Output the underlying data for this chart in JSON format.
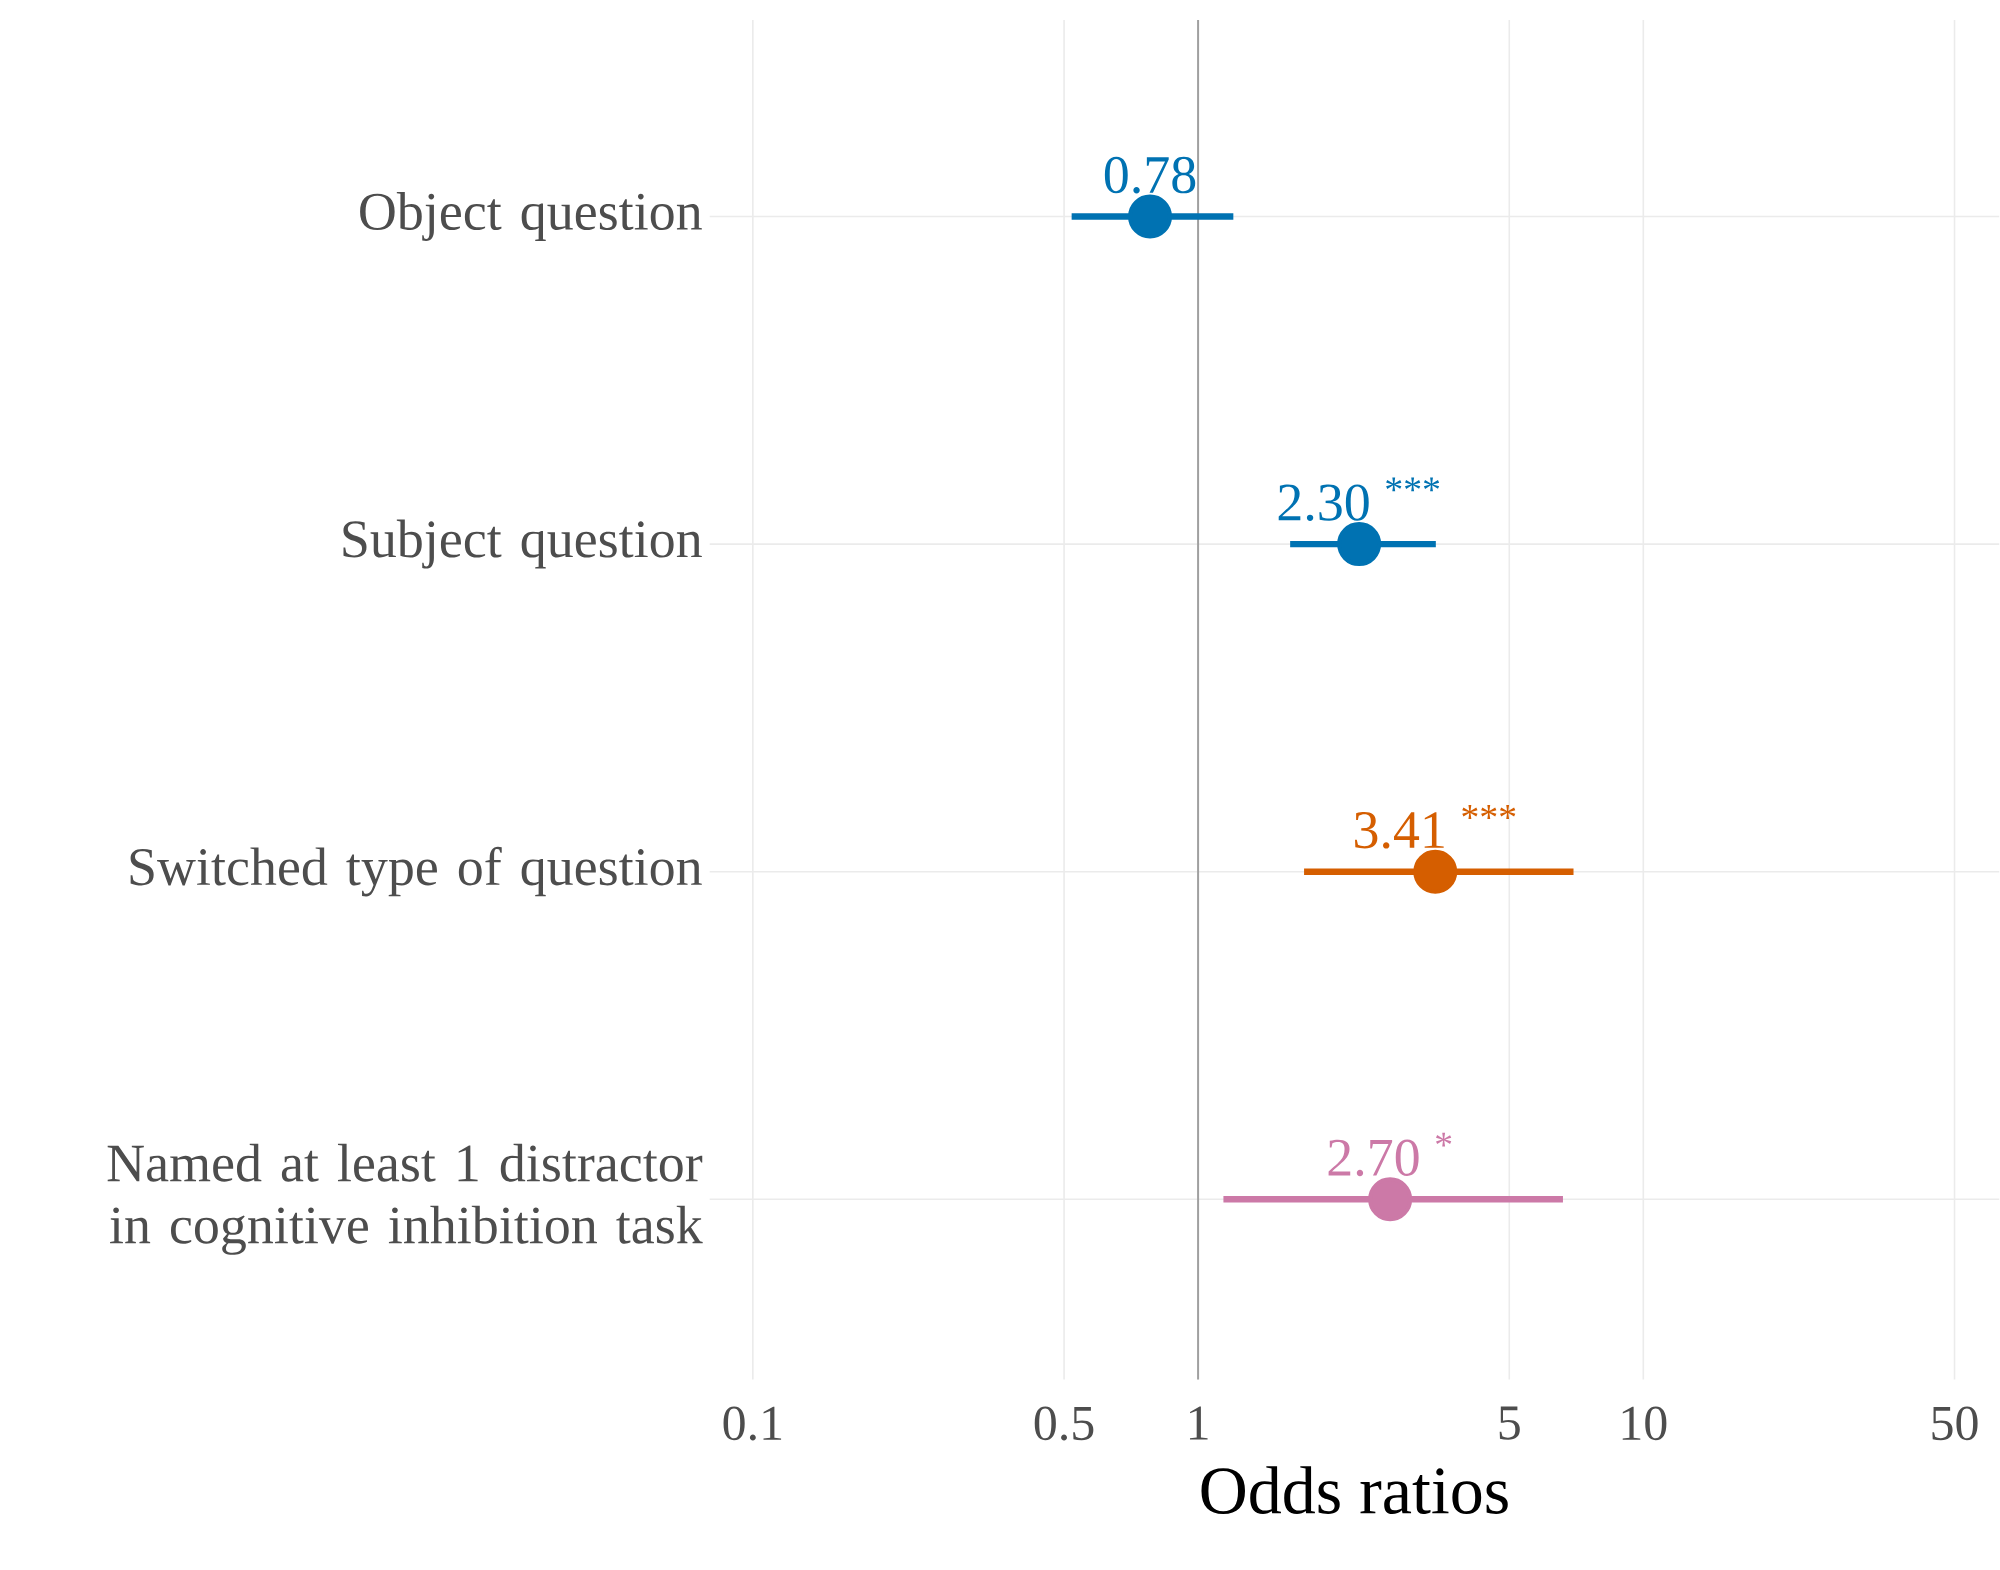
{
  "chart_data": {
    "type": "scatter",
    "orientation": "horizontal",
    "log": "x",
    "xlabel": "Odds ratios",
    "categories": [
      "Object question",
      "Subject question",
      "Switched type of question",
      "Named at least 1 distractor in cognitive inhibition task"
    ],
    "values": [
      0.78,
      2.3,
      3.41,
      2.7
    ],
    "errors": [
      [
        0.52,
        1.2
      ],
      [
        1.61,
        3.42
      ],
      [
        1.73,
        6.97
      ],
      [
        1.14,
        6.6
      ]
    ],
    "value_labels": [
      "0.78",
      "2.30 $^{***}$",
      "3.41 $^{***}$",
      "2.70 $^{*}$"
    ],
    "colors": [
      "#0072b2",
      "#0072b2",
      "#d55e00",
      "#cc79a7"
    ],
    "marker": "circle",
    "grid": true,
    "xlim": [
      0.08,
      63
    ],
    "xticks": [
      0.1,
      0.5,
      1,
      5,
      10,
      50
    ],
    "ref_lines": [
      {
        "axis": "x",
        "value": 1,
        "color": "#a0a0a0"
      }
    ]
  }
}
